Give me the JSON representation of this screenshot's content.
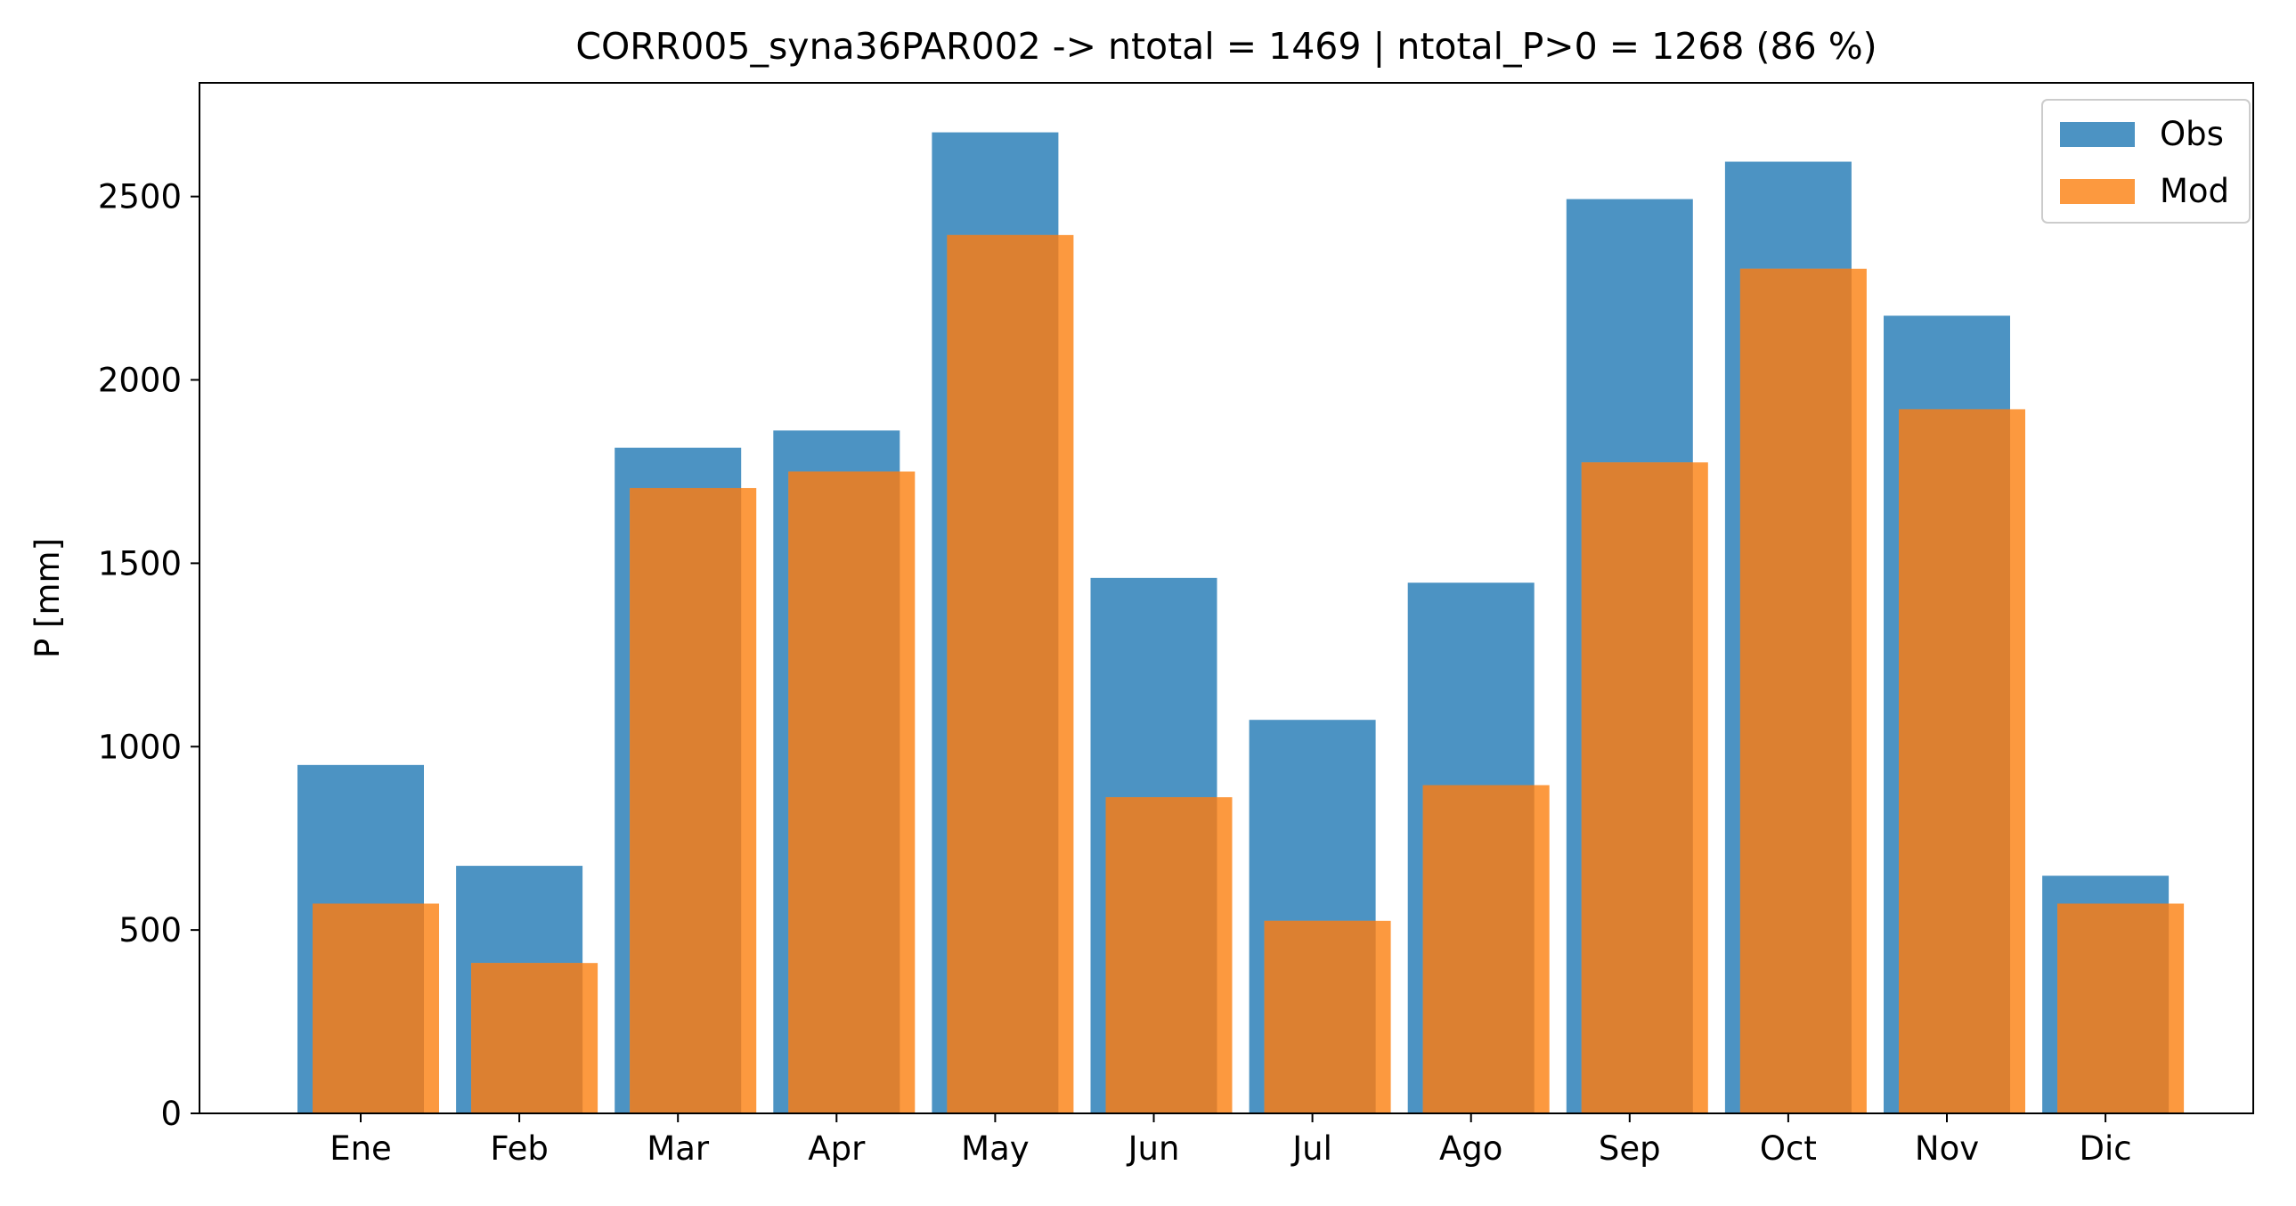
{
  "chart_data": {
    "type": "bar",
    "title": "CORR005_syna36PAR002 -> ntotal = 1469 | ntotal_P>0 = 1268 (86 %)",
    "xlabel": "",
    "ylabel": "P [mm]",
    "categories": [
      "Ene",
      "Feb",
      "Mar",
      "Apr",
      "May",
      "Jun",
      "Jul",
      "Ago",
      "Sep",
      "Oct",
      "Nov",
      "Dic"
    ],
    "series": [
      {
        "name": "Obs",
        "color": "#4c93c3",
        "values": [
          950,
          675,
          1815,
          1862,
          2675,
          1460,
          1073,
          1447,
          2493,
          2595,
          2175,
          648
        ]
      },
      {
        "name": "Mod",
        "color": "#fc993f",
        "values": [
          572,
          410,
          1705,
          1750,
          2395,
          862,
          525,
          895,
          1775,
          2303,
          1920,
          572
        ]
      }
    ],
    "overlap_color": "#dc8031",
    "ylim": [
      0,
      2810
    ],
    "yticks": [
      0,
      500,
      1000,
      1500,
      2000,
      2500
    ],
    "grid": false,
    "legend_position": "top-right"
  }
}
